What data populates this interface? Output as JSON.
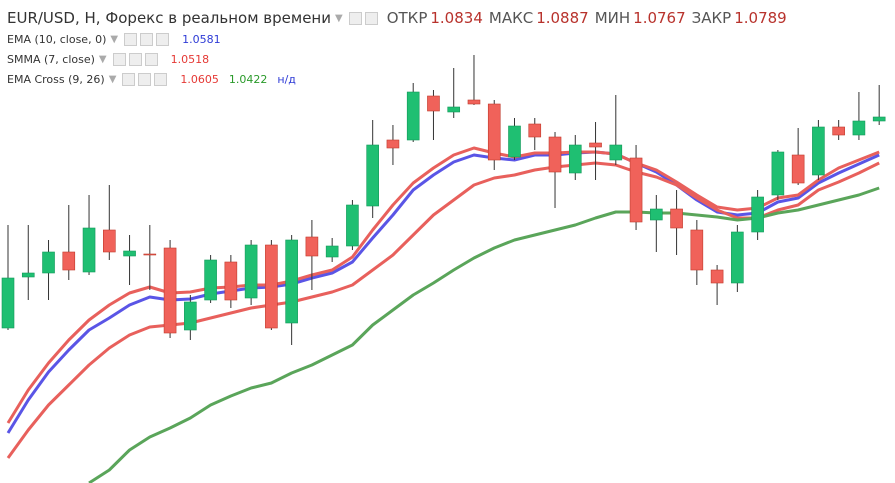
{
  "chart_data": {
    "type": "candlestick",
    "ylim": [
      1.0034,
      1.1
    ],
    "header": {
      "title": "EUR/USD, H, Форекс в реальном времени",
      "value_color": "#b8322c",
      "ohlc": [
        {
          "label": "ОТКР",
          "value": 1.0834
        },
        {
          "label": "МАКС",
          "value": 1.0887
        },
        {
          "label": "МИН",
          "value": 1.0767
        },
        {
          "label": "ЗАКР",
          "value": 1.0789
        }
      ]
    },
    "up_color": "#1fbf72",
    "down_color": "#f0625a",
    "wick_color": "#333333",
    "categories": [
      null,
      null,
      null,
      null,
      null,
      null,
      null,
      null,
      null,
      null,
      null,
      null,
      null,
      null,
      null,
      null,
      null,
      null,
      null,
      null,
      null,
      null,
      null,
      null,
      null,
      null,
      null,
      null,
      null,
      null,
      null,
      null,
      null,
      null,
      null,
      null,
      null,
      null,
      null,
      null,
      null,
      null,
      null,
      null
    ],
    "candles": {
      "open": [
        1.0344,
        1.0446,
        1.0454,
        1.0496,
        1.0456,
        1.054,
        1.0488,
        1.0492,
        1.0504,
        1.034,
        1.04,
        1.0476,
        1.0404,
        1.051,
        1.0354,
        1.0526,
        1.0486,
        1.0508,
        1.0588,
        1.072,
        1.072,
        1.0808,
        1.0776,
        1.08,
        1.0792,
        1.0686,
        1.0752,
        1.0726,
        1.0654,
        1.0714,
        1.068,
        1.0684,
        1.056,
        1.0582,
        1.054,
        1.046,
        1.0434,
        1.0536,
        1.061,
        1.069,
        1.065,
        1.0746,
        1.073,
        1.0758
      ],
      "high": [
        1.055,
        1.055,
        1.052,
        1.059,
        1.061,
        1.063,
        1.053,
        1.055,
        1.052,
        1.041,
        1.049,
        1.049,
        1.052,
        1.052,
        1.053,
        1.056,
        1.0524,
        1.06,
        1.076,
        1.075,
        1.0834,
        1.082,
        1.0864,
        1.089,
        1.08,
        1.0764,
        1.0764,
        1.0736,
        1.073,
        1.0756,
        1.081,
        1.071,
        1.061,
        1.062,
        1.056,
        1.047,
        1.055,
        1.062,
        1.07,
        1.0744,
        1.076,
        1.076,
        1.0816,
        1.083
      ],
      "low": [
        1.034,
        1.04,
        1.04,
        1.044,
        1.045,
        1.048,
        1.043,
        1.042,
        1.0324,
        1.032,
        1.0394,
        1.0384,
        1.039,
        1.034,
        1.031,
        1.042,
        1.0476,
        1.05,
        1.0564,
        1.067,
        1.0716,
        1.072,
        1.0764,
        1.079,
        1.066,
        1.068,
        1.07,
        1.0584,
        1.064,
        1.064,
        1.067,
        1.054,
        1.0496,
        1.049,
        1.043,
        1.039,
        1.0416,
        1.052,
        1.06,
        1.063,
        1.064,
        1.072,
        1.072,
        1.075
      ],
      "close": [
        1.0444,
        1.0454,
        1.0496,
        1.046,
        1.0544,
        1.0496,
        1.0498,
        1.049,
        1.0334,
        1.0396,
        1.048,
        1.04,
        1.051,
        1.0344,
        1.052,
        1.0488,
        1.0508,
        1.059,
        1.071,
        1.0704,
        1.0816,
        1.0778,
        1.0786,
        1.0792,
        1.068,
        1.0748,
        1.0726,
        1.0656,
        1.071,
        1.0706,
        1.071,
        1.0556,
        1.0582,
        1.0544,
        1.046,
        1.0434,
        1.0536,
        1.0606,
        1.0696,
        1.0634,
        1.0746,
        1.073,
        1.0758,
        1.0766
      ]
    },
    "indicators": [
      {
        "name": "EMA (10, close, 0)",
        "readouts": [
          {
            "value": 1.0581,
            "color": "#2e3bd6"
          }
        ],
        "series": [
          {
            "color": "#5a55e6",
            "values": [
              1.0134,
              1.02,
              1.0256,
              1.03,
              1.034,
              1.0364,
              1.039,
              1.0406,
              1.04,
              1.0402,
              1.0412,
              1.0418,
              1.0424,
              1.0426,
              1.0432,
              1.0444,
              1.0454,
              1.0476,
              1.0524,
              1.057,
              1.062,
              1.065,
              1.0676,
              1.069,
              1.0684,
              1.068,
              1.069,
              1.069,
              1.0694,
              1.0696,
              1.0692,
              1.0674,
              1.0656,
              1.063,
              1.06,
              1.0576,
              1.057,
              1.0574,
              1.0596,
              1.0604,
              1.0634,
              1.0654,
              1.0672,
              1.069
            ]
          }
        ]
      },
      {
        "name": "SMMA (7, close)",
        "readouts": [
          {
            "value": 1.0518,
            "color": "#e53935"
          }
        ],
        "series": [
          {
            "color": "#e8605c",
            "values": [
              1.0084,
              1.014,
              1.019,
              1.023,
              1.027,
              1.0304,
              1.033,
              1.0346,
              1.035,
              1.0354,
              1.0364,
              1.0374,
              1.0384,
              1.039,
              1.0396,
              1.0406,
              1.0416,
              1.043,
              1.046,
              1.049,
              1.053,
              1.057,
              1.06,
              1.063,
              1.0644,
              1.065,
              1.066,
              1.0666,
              1.067,
              1.0674,
              1.067,
              1.0656,
              1.0646,
              1.063,
              1.0604,
              1.058,
              1.0564,
              1.0564,
              1.058,
              1.059,
              1.062,
              1.0636,
              1.0654,
              1.0674
            ]
          }
        ]
      },
      {
        "name": "EMA Cross (9, 26)",
        "readouts": [
          {
            "value": 1.0605,
            "color": "#e53935"
          },
          {
            "value": 1.0422,
            "color": "#2a9a2a"
          },
          {
            "text": "н/д",
            "color": "#2e3bd6"
          }
        ],
        "series": [
          {
            "color": "#e8605c",
            "values": [
              1.0154,
              1.022,
              1.0274,
              1.032,
              1.036,
              1.039,
              1.0414,
              1.0426,
              1.0414,
              1.0416,
              1.0424,
              1.0426,
              1.043,
              1.043,
              1.0438,
              1.045,
              1.046,
              1.0486,
              1.054,
              1.059,
              1.0634,
              1.0664,
              1.069,
              1.0704,
              1.0694,
              1.0686,
              1.0694,
              1.0694,
              1.0696,
              1.0696,
              1.0692,
              1.0674,
              1.066,
              1.0636,
              1.061,
              1.0586,
              1.058,
              1.0584,
              1.0604,
              1.061,
              1.064,
              1.0664,
              1.068,
              1.0696
            ]
          },
          {
            "color": "#5aa55a",
            "values": [
              null,
              null,
              null,
              null,
              1.0034,
              1.006,
              1.01,
              1.0126,
              1.0144,
              1.0164,
              1.019,
              1.0208,
              1.0224,
              1.0234,
              1.0254,
              1.027,
              1.029,
              1.031,
              1.035,
              1.038,
              1.041,
              1.0434,
              1.046,
              1.0484,
              1.0504,
              1.052,
              1.053,
              1.054,
              1.055,
              1.0564,
              1.0576,
              1.0576,
              1.0574,
              1.0574,
              1.057,
              1.0566,
              1.056,
              1.0564,
              1.0574,
              1.058,
              1.059,
              1.06,
              1.061,
              1.0624
            ]
          }
        ]
      }
    ]
  }
}
